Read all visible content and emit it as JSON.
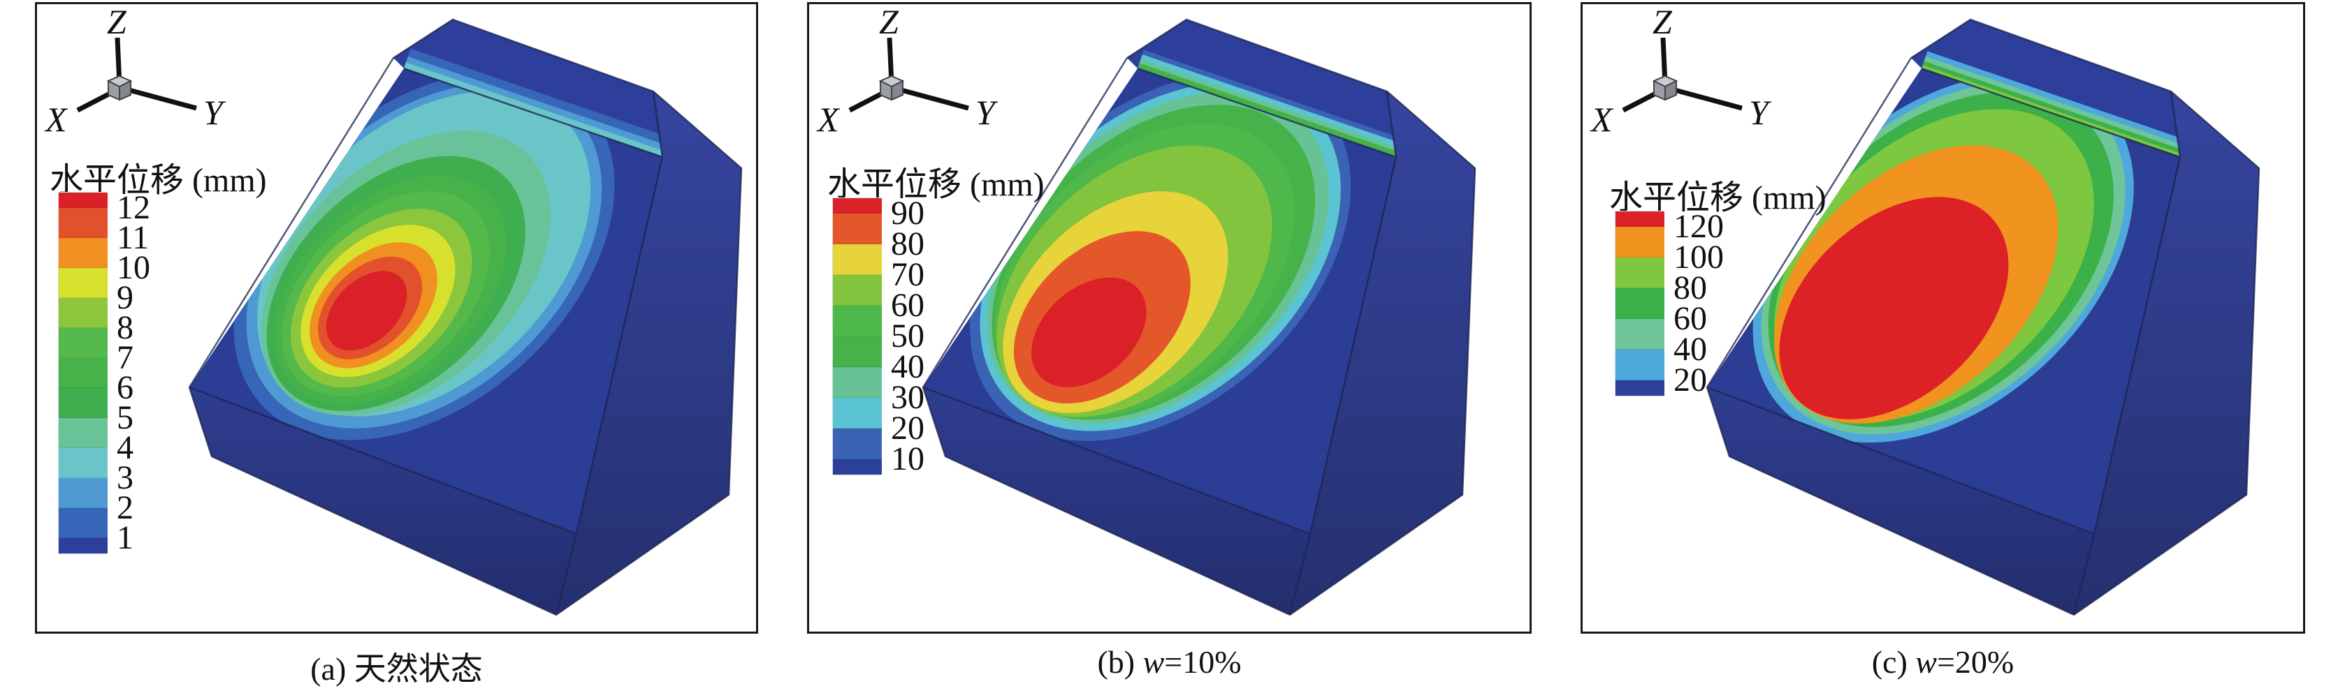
{
  "axis_triad": {
    "x": "X",
    "y": "Y",
    "z": "Z"
  },
  "model_colors": {
    "body": "#2b3d94",
    "top_face": "#2e3f9b",
    "right_face_top": "#36459f",
    "right_face_bottom": "#25306f",
    "front_face_top": "#2f3d90",
    "front_face_bottom": "#232e6e",
    "edge": "#18214d"
  },
  "panels": [
    {
      "id": "a",
      "legend_title": "水平位移 (mm)",
      "ticks": [
        "12",
        "11",
        "10",
        "9",
        "8",
        "7",
        "6",
        "5",
        "4",
        "3",
        "2",
        "1"
      ],
      "band_colors": [
        "#da2127",
        "#e2512b",
        "#ef9021",
        "#d7e02c",
        "#8cc63c",
        "#54b94b",
        "#46b249",
        "#3fae4e",
        "#68c399",
        "#6ac5c8",
        "#4f9ad3",
        "#3765b7",
        "#2c3f9a"
      ],
      "caption": {
        "prefix": "(a) ",
        "variable": "",
        "rest": "天然状态"
      }
    },
    {
      "id": "b",
      "legend_title": "水平位移 (mm)",
      "ticks": [
        "90",
        "80",
        "70",
        "60",
        "50",
        "40",
        "30",
        "20",
        "10"
      ],
      "band_colors": [
        "#da2127",
        "#e4572a",
        "#e7d33a",
        "#82c43e",
        "#4eb84a",
        "#45b24a",
        "#67c395",
        "#5bc4d2",
        "#3a62b5",
        "#2c3f9a"
      ],
      "caption": {
        "prefix": "(b) ",
        "variable": "w",
        "rest": "=10%"
      }
    },
    {
      "id": "c",
      "legend_title": "水平位移 (mm)",
      "ticks": [
        "120",
        "100",
        "80",
        "60",
        "40",
        "20"
      ],
      "band_colors": [
        "#dc2127",
        "#f0941f",
        "#7ec841",
        "#3cb049",
        "#6ec598",
        "#4ea8dc",
        "#2c3f9a"
      ],
      "caption": {
        "prefix": "(c) ",
        "variable": "w",
        "rest": "=20%"
      }
    }
  ],
  "chart_data": [
    {
      "type": "heatmap",
      "subtype": "3d-slope-contour",
      "caption": "(a) 天然状态",
      "legend_title": "水平位移 (mm)",
      "units": "mm",
      "levels": [
        1,
        2,
        3,
        4,
        5,
        6,
        7,
        8,
        9,
        10,
        11,
        12
      ],
      "level_colors_high_to_low": [
        "#da2127",
        "#e2512b",
        "#ef9021",
        "#d7e02c",
        "#8cc63c",
        "#54b94b",
        "#46b249",
        "#3fae4e",
        "#68c399",
        "#6ac5c8",
        "#4f9ad3",
        "#3765b7",
        "#2c3f9a"
      ],
      "value_range": [
        0,
        12
      ],
      "legend_position": "upper-left",
      "notes": "Maximum horizontal displacement band >12 mm concentrated in lower-left bullseye of slope face; upper slope face in 3-4 mm cyan band; block body below 1 mm (dark blue)."
    },
    {
      "type": "heatmap",
      "subtype": "3d-slope-contour",
      "caption": "(b) w=10%",
      "legend_title": "水平位移 (mm)",
      "units": "mm",
      "levels": [
        10,
        20,
        30,
        40,
        50,
        60,
        70,
        80,
        90
      ],
      "level_colors_high_to_low": [
        "#da2127",
        "#e4572a",
        "#e7d33a",
        "#82c43e",
        "#4eb84a",
        "#45b24a",
        "#67c395",
        "#5bc4d2",
        "#3a62b5",
        "#2c3f9a"
      ],
      "value_range": [
        0,
        90
      ],
      "legend_position": "upper-left",
      "notes": "Red >90 mm zone at lower-left of slope face, surrounded by 80-90 orange and 70-80 yellow bands; upper face 60-70 mm green; block body <10 mm."
    },
    {
      "type": "heatmap",
      "subtype": "3d-slope-contour",
      "caption": "(c) w=20%",
      "legend_title": "水平位移 (mm)",
      "units": "mm",
      "levels": [
        20,
        40,
        60,
        80,
        100,
        120
      ],
      "level_colors_high_to_low": [
        "#dc2127",
        "#f0941f",
        "#7ec841",
        "#3cb049",
        "#6ec598",
        "#4ea8dc",
        "#2c3f9a"
      ],
      "value_range": [
        0,
        120
      ],
      "legend_position": "upper-left",
      "notes": "Red >120 mm zone covers most of lower slope face, 100-120 mm orange band above it, 80-100 mm green near crest; block body <20 mm."
    }
  ]
}
